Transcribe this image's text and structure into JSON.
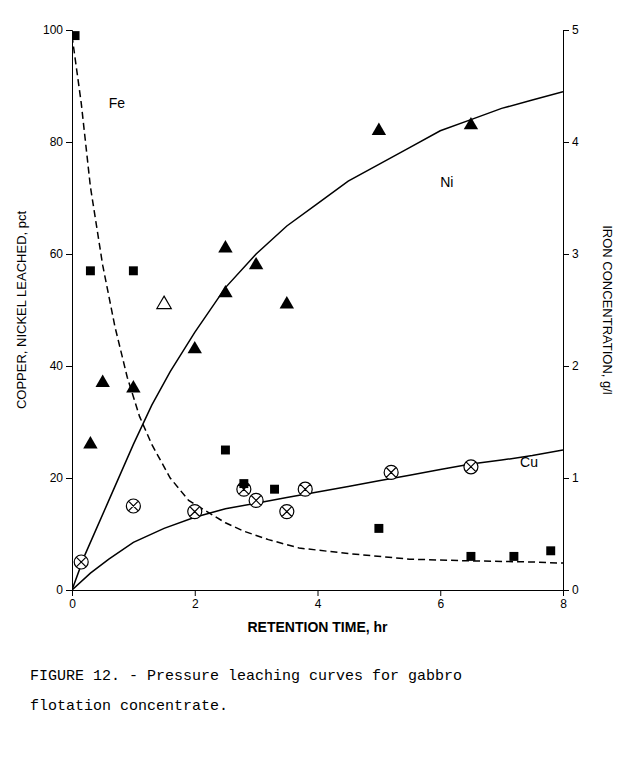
{
  "chart_data": {
    "type": "line",
    "title": "FIGURE 12. - Pressure leaching curves for gabbro",
    "subtitle": "flotation concentrate.",
    "xlabel": "RETENTION TIME, hr",
    "ylabel": "COPPER, NICKEL LEACHED, pct",
    "y2label": "IRON CONCENTRATION, g/l",
    "xlim": [
      0,
      8
    ],
    "ylim": [
      0,
      100
    ],
    "y2lim": [
      0,
      5
    ],
    "xticks": [
      0,
      2,
      4,
      6,
      8
    ],
    "yticks": [
      0,
      20,
      40,
      60,
      80,
      100
    ],
    "y2ticks": [
      0,
      1,
      2,
      3,
      4,
      5
    ],
    "grid": false,
    "series": [
      {
        "type": "line",
        "color": "#000000",
        "line_style": "solid",
        "x": [
          0,
          0.2,
          0.4,
          0.6,
          0.8,
          1.0,
          1.3,
          1.6,
          2.0,
          2.5,
          3.0,
          3.5,
          4.0,
          4.5,
          5.0,
          5.5,
          6.0,
          6.5,
          7.0,
          7.5,
          8.0
        ],
        "values": [
          0,
          6,
          11,
          16,
          21,
          26,
          33,
          39,
          46,
          54,
          60,
          65,
          69,
          73,
          76,
          79,
          82,
          84,
          86,
          87.5,
          89
        ]
      },
      {
        "type": "line",
        "color": "#000000",
        "line_style": "solid",
        "x": [
          0,
          0.3,
          0.6,
          1.0,
          1.5,
          2.0,
          2.5,
          3.0,
          3.5,
          4.0,
          4.5,
          5.0,
          5.5,
          6.0,
          6.5,
          7.0,
          7.5,
          8.0
        ],
        "values": [
          0,
          3,
          5.5,
          8.5,
          11,
          13,
          14.5,
          15.5,
          16.5,
          17.5,
          18.5,
          19.5,
          20.5,
          21.5,
          22.5,
          23.2,
          24,
          25
        ]
      },
      {
        "type": "line",
        "color": "#000000",
        "line_style": "dashed",
        "x": [
          0,
          0.15,
          0.3,
          0.5,
          0.7,
          0.9,
          1.1,
          1.3,
          1.6,
          1.9,
          2.2,
          2.5,
          2.8,
          3.2,
          3.7,
          4.5,
          5.5,
          6.5,
          7.5,
          8.0
        ],
        "values": [
          99,
          87,
          72,
          58,
          47,
          38,
          31,
          26,
          20,
          16,
          14,
          12,
          10.5,
          9,
          7.5,
          6.5,
          5.5,
          5.2,
          5.0,
          4.8
        ]
      },
      {
        "type": "scatter",
        "color": "#000000",
        "marker": "triangle",
        "x": [
          0.3,
          0.5,
          1.0,
          2.0,
          2.5,
          2.5,
          3.0,
          3.5,
          5.0,
          6.5
        ],
        "values": [
          26,
          37,
          36,
          43,
          53,
          61,
          58,
          51,
          82,
          83
        ]
      },
      {
        "type": "scatter",
        "color": "#000000",
        "marker": "triangle-open",
        "x": [
          1.5
        ],
        "values": [
          51
        ]
      },
      {
        "type": "scatter",
        "color": "#000000",
        "marker": "circle-x",
        "x": [
          0.15,
          1.0,
          2.0,
          2.8,
          3.0,
          3.5,
          3.8,
          5.2,
          6.5
        ],
        "values": [
          5,
          15,
          14,
          18,
          16,
          14,
          18,
          21,
          22
        ]
      },
      {
        "type": "scatter",
        "color": "#000000",
        "marker": "square",
        "x": [
          0.05,
          0.3,
          1.0,
          2.5,
          2.8,
          3.3,
          5.0,
          6.5,
          7.2,
          7.8
        ],
        "values": [
          99,
          57,
          57,
          25,
          19,
          18,
          11,
          6,
          6,
          7
        ]
      }
    ],
    "annotations": [
      {
        "text": "Ni",
        "x": 6.0,
        "y": 72
      },
      {
        "text": "Cu",
        "x": 7.3,
        "y": 22
      },
      {
        "text": "Fe",
        "x": 0.6,
        "y": 86
      }
    ]
  }
}
